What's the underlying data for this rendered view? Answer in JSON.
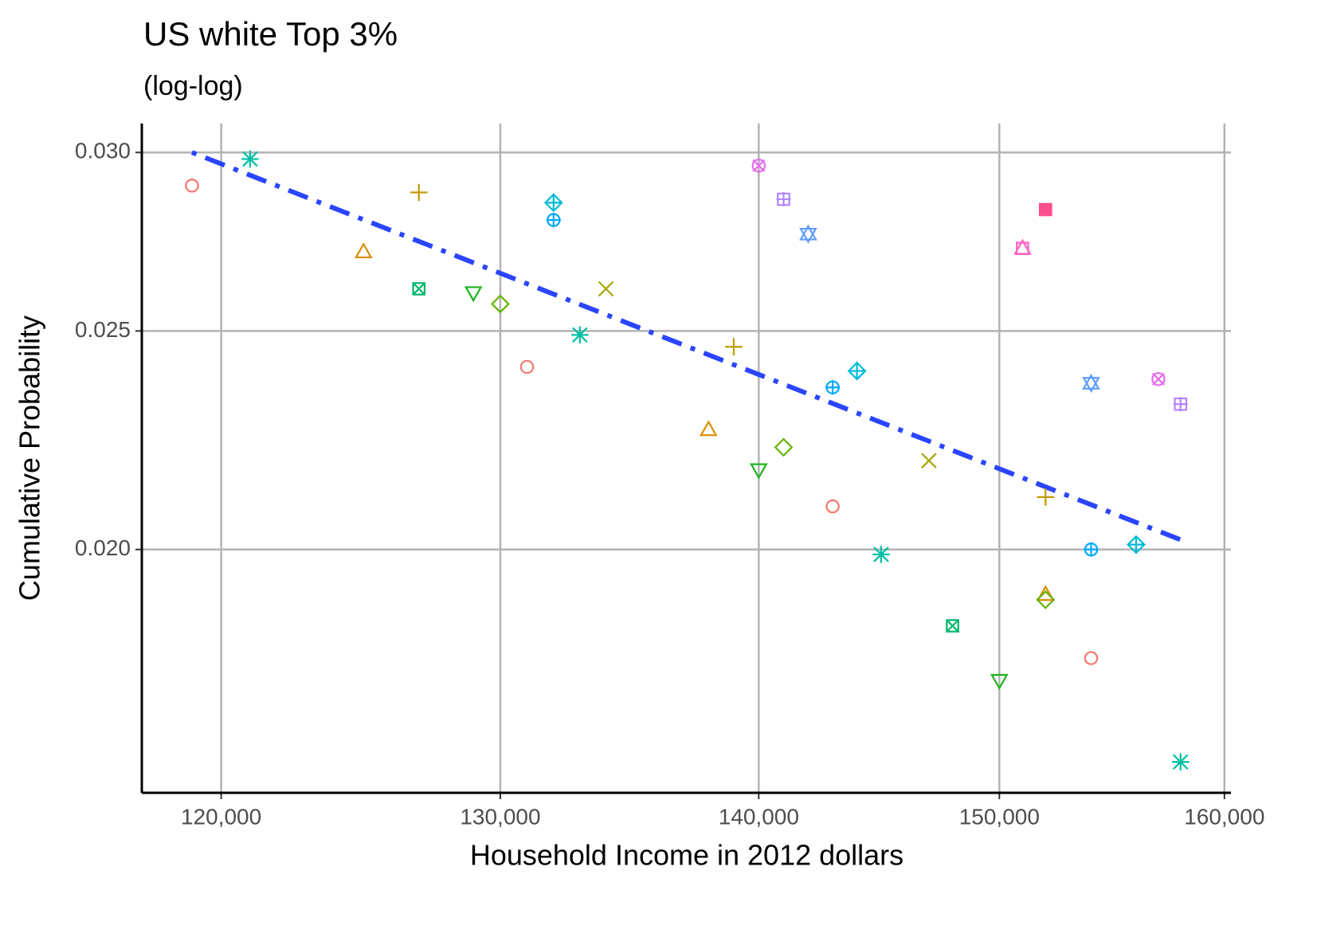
{
  "chart_data": {
    "type": "scatter",
    "title": "US white Top 3%",
    "subtitle": "(log-log)",
    "x_label": "Household Income in 2012 dollars",
    "y_label": "Cumulative Probability",
    "log_x": true,
    "log_y": true,
    "grid": true,
    "xlim": [
      117300,
      160300
    ],
    "ylim": [
      0.0156,
      0.0309
    ],
    "xticks": [
      {
        "value": 120000,
        "label": "120,000"
      },
      {
        "value": 130000,
        "label": "130,000"
      },
      {
        "value": 140000,
        "label": "140,000"
      },
      {
        "value": 150000,
        "label": "150,000"
      },
      {
        "value": 160000,
        "label": "160,000"
      }
    ],
    "yticks": [
      {
        "value": 0.02,
        "label": "0.020"
      },
      {
        "value": 0.025,
        "label": "0.025"
      },
      {
        "value": 0.03,
        "label": "0.030"
      }
    ],
    "series": [
      {
        "shape": "circle",
        "color": "#F8766D",
        "x": [
          119000,
          131000,
          143000,
          154000
        ],
        "values": [
          0.029,
          0.0241,
          0.0209,
          0.0179
        ]
      },
      {
        "shape": "triangle",
        "color": "#DB8E00",
        "x": [
          125000,
          138000,
          152000
        ],
        "values": [
          0.0271,
          0.0226,
          0.0191
        ]
      },
      {
        "shape": "plus",
        "color": "#C09B00",
        "x": [
          127000,
          139000,
          152000
        ],
        "values": [
          0.0288,
          0.0246,
          0.0211
        ]
      },
      {
        "shape": "cross",
        "color": "#A3A500",
        "x": [
          134000,
          147000
        ],
        "values": [
          0.0261,
          0.0219
        ]
      },
      {
        "shape": "diamond",
        "color": "#64B200",
        "x": [
          130000,
          141000,
          152000
        ],
        "values": [
          0.0257,
          0.0222,
          0.019
        ]
      },
      {
        "shape": "triangle-down",
        "color": "#1DB41D",
        "x": [
          129000,
          140000,
          150000
        ],
        "values": [
          0.026,
          0.0217,
          0.0175
        ]
      },
      {
        "shape": "square-cross",
        "color": "#00B76C",
        "x": [
          127000,
          148000
        ],
        "values": [
          0.0261,
          0.0185
        ]
      },
      {
        "shape": "asterisk",
        "color": "#00BFA4",
        "x": [
          121000,
          133000,
          145000,
          158000
        ],
        "values": [
          0.0298,
          0.0249,
          0.0199,
          0.0161
        ]
      },
      {
        "shape": "diamond-plus",
        "color": "#00BAD8",
        "x": [
          132000,
          144000,
          156000
        ],
        "values": [
          0.0285,
          0.024,
          0.0201
        ]
      },
      {
        "shape": "circle-plus",
        "color": "#00A9FF",
        "x": [
          132000,
          143000,
          154000
        ],
        "values": [
          0.028,
          0.0236,
          0.02
        ]
      },
      {
        "shape": "star",
        "color": "#619CFF",
        "x": [
          142000,
          154000
        ],
        "values": [
          0.0276,
          0.0237
        ]
      },
      {
        "shape": "square-plus",
        "color": "#B385FF",
        "x": [
          141000,
          158000
        ],
        "values": [
          0.0286,
          0.0232
        ]
      },
      {
        "shape": "circle-cross",
        "color": "#E76BF3",
        "x": [
          140000,
          157000
        ],
        "values": [
          0.0296,
          0.0238
        ]
      },
      {
        "shape": "square-triangle",
        "color": "#FF61C3",
        "x": [
          151000
        ],
        "values": [
          0.0272
        ]
      },
      {
        "shape": "square-filled",
        "color": "#FF4E8E",
        "x": [
          152000
        ],
        "values": [
          0.0283
        ]
      }
    ],
    "fit": {
      "color": "#2A45FF",
      "x": [
        119000,
        158000
      ],
      "values": [
        0.03,
        0.0202
      ]
    }
  }
}
